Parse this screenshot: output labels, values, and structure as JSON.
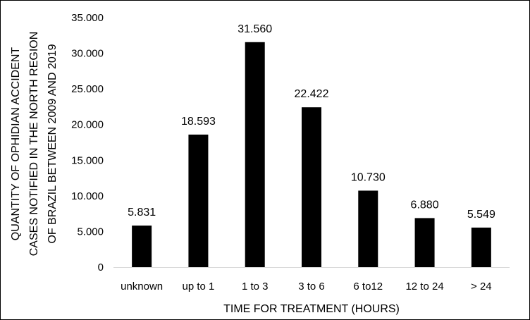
{
  "chart_data": {
    "type": "bar",
    "title": "",
    "categories": [
      "unknown",
      "up to 1",
      "1 to 3",
      "3 to 6",
      "6 to12",
      "12 to 24",
      "> 24"
    ],
    "values": [
      5831,
      18593,
      31560,
      22422,
      10730,
      6880,
      5549
    ],
    "value_labels": [
      "5.831",
      "18.593",
      "31.560",
      "22.422",
      "10.730",
      "6.880",
      "5.549"
    ],
    "xlabel": "TIME FOR TREATMENT (HOURS)",
    "ylabel_lines": [
      "QUANTITY OF OPHIDIAN ACCIDENT",
      "CASES NOTIFIED IN THE NORTH REGION",
      "OF BRAZIL BETWEEN 2009 AND 2019"
    ],
    "ylim": [
      0,
      35000
    ],
    "yticks": [
      0,
      5000,
      10000,
      15000,
      20000,
      25000,
      30000,
      35000
    ],
    "ytick_labels": [
      "0",
      "5.000",
      "10.000",
      "15.000",
      "20.000",
      "25.000",
      "30.000",
      "35.000"
    ],
    "grid": false,
    "legend": "none",
    "bar_color": "#000000"
  }
}
